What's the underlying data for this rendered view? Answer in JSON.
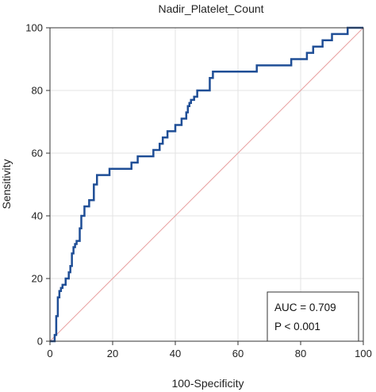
{
  "chart_data": {
    "type": "line",
    "title": "Nadir_Platelet_Count",
    "xlabel": "100-Specificity",
    "ylabel": "Sensitivity",
    "xlim": [
      0,
      100
    ],
    "ylim": [
      0,
      100
    ],
    "xticks": [
      0,
      20,
      40,
      60,
      80,
      100
    ],
    "yticks": [
      0,
      20,
      40,
      60,
      80,
      100
    ],
    "grid": true,
    "legend_position": "bottom-right",
    "annotations": [
      "AUC = 0.709",
      "P < 0.001"
    ],
    "colors": {
      "roc": "#1f4e96",
      "reference": "#e8a0a0",
      "grid": "#e3e3e3",
      "axis": "#333333"
    },
    "series": [
      {
        "x": [
          0,
          1.5,
          1.5,
          2,
          2,
          2.5,
          2.5,
          3,
          3,
          3.5,
          3.5,
          4,
          4,
          5,
          5,
          6,
          6,
          6.5,
          6.5,
          7,
          7,
          7.5,
          7.5,
          8,
          8,
          8.5,
          8.5,
          9.5,
          9.5,
          10,
          10,
          11,
          11,
          12.5,
          12.5,
          14,
          14,
          15,
          15,
          19,
          19,
          26,
          26,
          28,
          28,
          29,
          29,
          33,
          33,
          35,
          35,
          36,
          36,
          37.5,
          37.5,
          38.5,
          38.5,
          40,
          40,
          42,
          42,
          43.5,
          43.5,
          44,
          44,
          44.5,
          44.5,
          45,
          45,
          46,
          46,
          47,
          47,
          49,
          49,
          51,
          51,
          52,
          52,
          66,
          66,
          77,
          77,
          82,
          82,
          83,
          83,
          84,
          84,
          86,
          86,
          87,
          87,
          89,
          89,
          90,
          90,
          95,
          95,
          100
        ],
        "y": [
          0,
          0,
          2,
          2,
          8,
          8,
          14,
          14,
          16,
          16,
          17,
          17,
          18,
          18,
          20,
          20,
          22,
          22,
          24,
          24,
          28,
          28,
          30,
          30,
          31,
          31,
          32,
          32,
          36,
          36,
          40,
          40,
          43,
          43,
          45,
          45,
          50,
          50,
          53,
          53,
          55,
          55,
          57,
          57,
          59,
          59,
          59,
          59,
          61,
          61,
          63,
          63,
          65,
          65,
          67,
          67,
          67,
          67,
          69,
          69,
          71,
          71,
          73,
          73,
          75,
          75,
          76,
          76,
          77,
          77,
          78,
          78,
          80,
          80,
          80,
          80,
          84,
          84,
          86,
          86,
          88,
          88,
          90,
          90,
          92,
          92,
          92,
          92,
          94,
          94,
          94,
          94,
          96,
          96,
          96,
          96,
          98,
          98,
          100,
          100
        ]
      },
      {
        "x": [
          0,
          100
        ],
        "y": [
          0,
          100
        ]
      }
    ]
  }
}
